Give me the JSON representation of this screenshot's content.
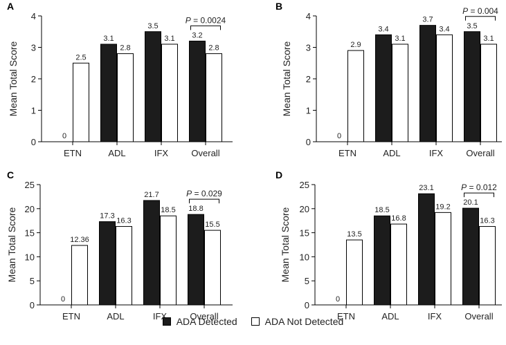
{
  "legend": {
    "detected_label": "ADA Detected",
    "not_detected_label": "ADA Not Detected"
  },
  "colors": {
    "detected": "#1c1c1c",
    "not_detected": "#ffffff",
    "axis": "#000000"
  },
  "chart_data": [
    {
      "type": "bar",
      "panel": "A",
      "ylabel": "Mean Total Score",
      "ylim": [
        0,
        4
      ],
      "yticks": [
        0,
        1,
        2,
        3,
        4
      ],
      "categories": [
        "ETN",
        "ADL",
        "IFX",
        "Overall"
      ],
      "series": [
        {
          "name": "ADA Detected",
          "values": [
            0,
            3.1,
            3.5,
            3.2
          ],
          "labels": [
            "0",
            "3.1",
            "3.5",
            "3.2"
          ]
        },
        {
          "name": "ADA Not Detected",
          "values": [
            2.5,
            2.8,
            3.1,
            2.8
          ],
          "labels": [
            "2.5",
            "2.8",
            "3.1",
            "2.8"
          ]
        }
      ],
      "annotation": {
        "p_prefix": "P",
        "p_value": "= 0.0024",
        "category": "Overall"
      }
    },
    {
      "type": "bar",
      "panel": "B",
      "ylabel": "Mean Total Score",
      "ylim": [
        0,
        4
      ],
      "yticks": [
        0,
        1,
        2,
        3,
        4
      ],
      "categories": [
        "ETN",
        "ADL",
        "IFX",
        "Overall"
      ],
      "series": [
        {
          "name": "ADA Detected",
          "values": [
            0,
            3.4,
            3.7,
            3.5
          ],
          "labels": [
            "0",
            "3.4",
            "3.7",
            "3.5"
          ]
        },
        {
          "name": "ADA Not Detected",
          "values": [
            2.9,
            3.1,
            3.4,
            3.1
          ],
          "labels": [
            "2.9",
            "3.1",
            "3.4",
            "3.1"
          ]
        }
      ],
      "annotation": {
        "p_prefix": "P",
        "p_value": "= 0.004",
        "category": "Overall"
      }
    },
    {
      "type": "bar",
      "panel": "C",
      "ylabel": "Mean Total Score",
      "ylim": [
        0,
        25
      ],
      "yticks": [
        0,
        5,
        10,
        15,
        20,
        25
      ],
      "categories": [
        "ETN",
        "ADL",
        "IFX",
        "Overall"
      ],
      "series": [
        {
          "name": "ADA Detected",
          "values": [
            0,
            17.3,
            21.7,
            18.8
          ],
          "labels": [
            "0",
            "17.3",
            "21.7",
            "18.8"
          ]
        },
        {
          "name": "ADA Not Detected",
          "values": [
            12.36,
            16.3,
            18.5,
            15.5
          ],
          "labels": [
            "12.36",
            "16.3",
            "18.5",
            "15.5"
          ]
        }
      ],
      "annotation": {
        "p_prefix": "P",
        "p_value": "= 0.029",
        "category": "Overall"
      }
    },
    {
      "type": "bar",
      "panel": "D",
      "ylabel": "Mean Total Score",
      "ylim": [
        0,
        25
      ],
      "yticks": [
        0,
        5,
        10,
        15,
        20,
        25
      ],
      "categories": [
        "ETN",
        "ADL",
        "IFX",
        "Overall"
      ],
      "series": [
        {
          "name": "ADA Detected",
          "values": [
            0,
            18.5,
            23.1,
            20.1
          ],
          "labels": [
            "0",
            "18.5",
            "23.1",
            "20.1"
          ]
        },
        {
          "name": "ADA Not Detected",
          "values": [
            13.5,
            16.8,
            19.2,
            16.3
          ],
          "labels": [
            "13.5",
            "16.8",
            "19.2",
            "16.3"
          ]
        }
      ],
      "annotation": {
        "p_prefix": "P",
        "p_value": "= 0.012",
        "category": "Overall"
      }
    }
  ]
}
